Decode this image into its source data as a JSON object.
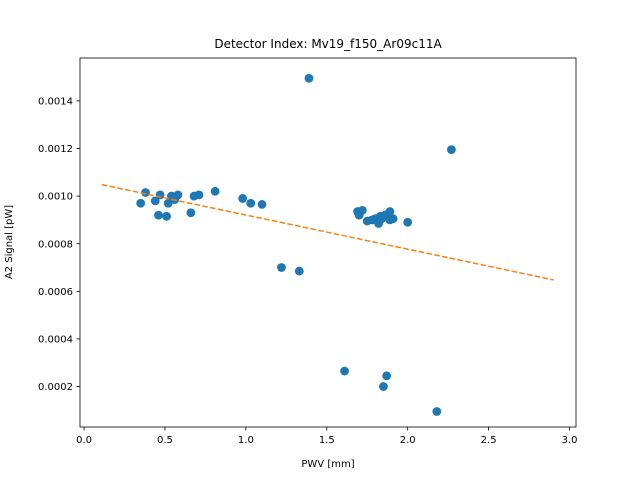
{
  "chart_data": {
    "type": "scatter",
    "title": "Detector Index: Mv19_f150_Ar09c11A",
    "xlabel": "PWV [mm]",
    "ylabel": "A2 Signal [pW]",
    "xlim": [
      -0.025,
      3.04
    ],
    "ylim": [
      3e-05,
      0.00158
    ],
    "xticks": [
      0.0,
      0.5,
      1.0,
      1.5,
      2.0,
      2.5,
      3.0
    ],
    "xtick_labels": [
      "0.0",
      "0.5",
      "1.0",
      "1.5",
      "2.0",
      "2.5",
      "3.0"
    ],
    "yticks": [
      0.0002,
      0.0004,
      0.0006,
      0.0008,
      0.001,
      0.0012,
      0.0014
    ],
    "ytick_labels": [
      "0.0002",
      "0.0004",
      "0.0006",
      "0.0008",
      "0.0010",
      "0.0012",
      "0.0014"
    ],
    "grid": false,
    "series": [
      {
        "name": "data",
        "type": "scatter",
        "color": "#1f77b4",
        "points": [
          [
            0.35,
            0.00097
          ],
          [
            0.38,
            0.001015
          ],
          [
            0.44,
            0.00098
          ],
          [
            0.46,
            0.00092
          ],
          [
            0.47,
            0.001005
          ],
          [
            0.51,
            0.000915
          ],
          [
            0.52,
            0.00097
          ],
          [
            0.54,
            0.001
          ],
          [
            0.56,
            0.000985
          ],
          [
            0.58,
            0.001005
          ],
          [
            0.66,
            0.00093
          ],
          [
            0.68,
            0.001
          ],
          [
            0.71,
            0.001005
          ],
          [
            0.81,
            0.00102
          ],
          [
            0.98,
            0.00099
          ],
          [
            1.03,
            0.00097
          ],
          [
            1.1,
            0.000965
          ],
          [
            1.22,
            0.0007
          ],
          [
            1.33,
            0.000685
          ],
          [
            1.39,
            0.001495
          ],
          [
            1.61,
            0.000265
          ],
          [
            1.69,
            0.000935
          ],
          [
            1.7,
            0.00092
          ],
          [
            1.72,
            0.00094
          ],
          [
            1.75,
            0.000895
          ],
          [
            1.78,
            0.0009
          ],
          [
            1.8,
            0.000905
          ],
          [
            1.82,
            0.000885
          ],
          [
            1.83,
            0.000915
          ],
          [
            1.84,
            0.000905
          ],
          [
            1.85,
            0.0002
          ],
          [
            1.86,
            0.00092
          ],
          [
            1.87,
            0.000245
          ],
          [
            1.88,
            0.000925
          ],
          [
            1.89,
            0.0009
          ],
          [
            1.89,
            0.000935
          ],
          [
            1.91,
            0.000905
          ],
          [
            2.0,
            0.00089
          ],
          [
            2.18,
            9.5e-05
          ],
          [
            2.27,
            0.001195
          ]
        ]
      },
      {
        "name": "fit",
        "type": "line",
        "style": "dashed",
        "color": "#ff7f0e",
        "x": [
          0.11,
          2.9
        ],
        "y": [
          0.001048,
          0.000648
        ]
      }
    ]
  }
}
